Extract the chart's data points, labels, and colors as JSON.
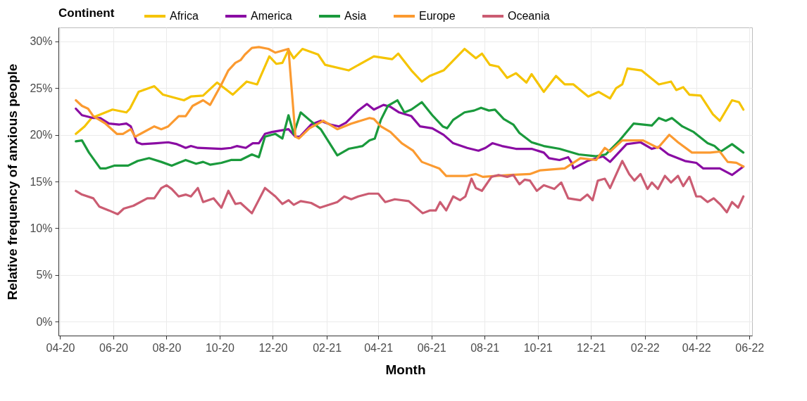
{
  "chart_data": {
    "type": "line",
    "xlabel": "Month",
    "ylabel": "Relative frequency of anxious people",
    "legend_title": "Continent",
    "legend": "top",
    "grid": true,
    "xlim": [
      "2020-03-30",
      "2022-06-04"
    ],
    "xticks": [
      {
        "value": "2020-04-01",
        "label": "04-20"
      },
      {
        "value": "2020-06-01",
        "label": "06-20"
      },
      {
        "value": "2020-08-01",
        "label": "08-20"
      },
      {
        "value": "2020-10-01",
        "label": "10-20"
      },
      {
        "value": "2020-12-01",
        "label": "12-20"
      },
      {
        "value": "2021-02-01",
        "label": "02-21"
      },
      {
        "value": "2021-04-01",
        "label": "04-21"
      },
      {
        "value": "2021-06-01",
        "label": "06-21"
      },
      {
        "value": "2021-08-01",
        "label": "08-21"
      },
      {
        "value": "2021-10-01",
        "label": "10-21"
      },
      {
        "value": "2021-12-01",
        "label": "12-21"
      },
      {
        "value": "2022-02-01",
        "label": "02-22"
      },
      {
        "value": "2022-04-01",
        "label": "04-22"
      },
      {
        "value": "2022-06-01",
        "label": "06-22"
      }
    ],
    "ylim": [
      -1.5,
      31.5
    ],
    "yticks": [
      {
        "value": 0,
        "label": "0%"
      },
      {
        "value": 5,
        "label": "5%"
      },
      {
        "value": 10,
        "label": "10%"
      },
      {
        "value": 15,
        "label": "15%"
      },
      {
        "value": 20,
        "label": "20%"
      },
      {
        "value": 25,
        "label": "25%"
      },
      {
        "value": 30,
        "label": "30%"
      }
    ],
    "series": [
      {
        "name": "Africa",
        "color": "#f5c400",
        "x": [
          "2020-04-19",
          "2020-04-29",
          "2020-05-07",
          "2020-05-31",
          "2020-06-16",
          "2020-06-20",
          "2020-06-30",
          "2020-07-18",
          "2020-07-28",
          "2020-08-21",
          "2020-08-29",
          "2020-09-12",
          "2020-09-28",
          "2020-10-16",
          "2020-11-01",
          "2020-11-13",
          "2020-11-27",
          "2020-12-05",
          "2020-12-12",
          "2020-12-19",
          "2020-12-25",
          "2021-01-04",
          "2021-01-22",
          "2021-01-30",
          "2021-02-26",
          "2021-03-27",
          "2021-04-17",
          "2021-04-24",
          "2021-05-09",
          "2021-05-21",
          "2021-05-30",
          "2021-06-15",
          "2021-07-09",
          "2021-07-22",
          "2021-07-29",
          "2021-08-07",
          "2021-08-17",
          "2021-08-27",
          "2021-09-06",
          "2021-09-18",
          "2021-09-24",
          "2021-10-08",
          "2021-10-22",
          "2021-11-01",
          "2021-11-11",
          "2021-11-28",
          "2021-12-10",
          "2021-12-23",
          "2021-12-30",
          "2022-01-06",
          "2022-01-12",
          "2022-01-28",
          "2022-02-17",
          "2022-03-03",
          "2022-03-09",
          "2022-03-17",
          "2022-03-24",
          "2022-04-06",
          "2022-04-20",
          "2022-04-28",
          "2022-05-12",
          "2022-05-20",
          "2022-05-25"
        ],
        "values": [
          20.1,
          20.9,
          21.8,
          22.7,
          22.4,
          22.8,
          24.6,
          25.2,
          24.3,
          23.7,
          24.1,
          24.2,
          25.6,
          24.3,
          25.7,
          25.4,
          28.4,
          27.6,
          27.7,
          29.1,
          28.2,
          29.2,
          28.6,
          27.5,
          26.9,
          28.4,
          28.1,
          28.7,
          26.9,
          25.7,
          26.3,
          26.9,
          29.2,
          28.2,
          28.7,
          27.5,
          27.3,
          26.1,
          26.6,
          25.6,
          26.5,
          24.6,
          26.3,
          25.4,
          25.4,
          24.1,
          24.6,
          23.9,
          25.0,
          25.4,
          27.1,
          26.9,
          25.4,
          25.7,
          24.8,
          25.1,
          24.3,
          24.2,
          22.2,
          21.5,
          23.7,
          23.5,
          22.7
        ]
      },
      {
        "name": "America",
        "color": "#8a0ca3",
        "x": [
          "2020-04-19",
          "2020-04-26",
          "2020-05-09",
          "2020-05-17",
          "2020-05-27",
          "2020-06-08",
          "2020-06-16",
          "2020-06-21",
          "2020-06-28",
          "2020-07-04",
          "2020-07-20",
          "2020-08-03",
          "2020-08-13",
          "2020-08-23",
          "2020-08-29",
          "2020-09-06",
          "2020-10-03",
          "2020-10-14",
          "2020-10-21",
          "2020-10-31",
          "2020-11-08",
          "2020-11-15",
          "2020-11-22",
          "2020-11-30",
          "2020-12-19",
          "2020-12-27",
          "2021-01-01",
          "2021-01-14",
          "2021-01-25",
          "2021-02-05",
          "2021-02-15",
          "2021-02-23",
          "2021-03-09",
          "2021-03-19",
          "2021-03-27",
          "2021-04-07",
          "2021-04-15",
          "2021-04-25",
          "2021-05-09",
          "2021-05-19",
          "2021-06-02",
          "2021-06-15",
          "2021-06-26",
          "2021-07-12",
          "2021-07-25",
          "2021-08-02",
          "2021-08-10",
          "2021-08-21",
          "2021-09-06",
          "2021-09-24",
          "2021-10-08",
          "2021-10-14",
          "2021-10-26",
          "2021-11-05",
          "2021-11-09",
          "2021-11-11",
          "2021-11-27",
          "2021-12-15",
          "2021-12-23",
          "2022-01-11",
          "2022-01-27",
          "2022-02-09",
          "2022-02-17",
          "2022-02-28",
          "2022-03-19",
          "2022-04-01",
          "2022-04-09",
          "2022-04-28",
          "2022-05-12",
          "2022-05-25"
        ],
        "values": [
          22.8,
          22.1,
          21.8,
          21.8,
          21.2,
          21.1,
          21.2,
          20.9,
          19.2,
          19.0,
          19.1,
          19.2,
          19.0,
          18.6,
          18.8,
          18.6,
          18.5,
          18.6,
          18.8,
          18.6,
          19.1,
          19.1,
          20.1,
          20.3,
          20.6,
          19.8,
          19.8,
          21.1,
          21.5,
          21.1,
          20.9,
          21.3,
          22.6,
          23.3,
          22.7,
          23.2,
          23.0,
          22.4,
          22.0,
          20.9,
          20.7,
          20.0,
          19.1,
          18.6,
          18.3,
          18.6,
          19.1,
          18.8,
          18.5,
          18.5,
          18.1,
          17.5,
          17.3,
          17.6,
          17.0,
          16.4,
          17.2,
          17.7,
          17.1,
          19.0,
          19.2,
          18.5,
          18.7,
          17.9,
          17.2,
          17.0,
          16.4,
          16.4,
          15.7,
          16.6
        ]
      },
      {
        "name": "Asia",
        "color": "#1a9a3c",
        "x": [
          "2020-04-19",
          "2020-04-26",
          "2020-05-04",
          "2020-05-17",
          "2020-05-23",
          "2020-06-02",
          "2020-06-18",
          "2020-06-29",
          "2020-07-12",
          "2020-07-26",
          "2020-08-07",
          "2020-08-23",
          "2020-09-04",
          "2020-09-12",
          "2020-09-20",
          "2020-10-03",
          "2020-10-14",
          "2020-10-25",
          "2020-11-07",
          "2020-11-15",
          "2020-11-22",
          "2020-12-04",
          "2020-12-12",
          "2020-12-19",
          "2020-12-25",
          "2021-01-02",
          "2021-01-12",
          "2021-01-25",
          "2021-02-13",
          "2021-02-26",
          "2021-03-14",
          "2021-03-22",
          "2021-03-28",
          "2021-04-04",
          "2021-04-12",
          "2021-04-23",
          "2021-05-01",
          "2021-05-09",
          "2021-05-21",
          "2021-06-02",
          "2021-06-14",
          "2021-06-19",
          "2021-06-26",
          "2021-07-09",
          "2021-07-20",
          "2021-07-28",
          "2021-08-06",
          "2021-08-13",
          "2021-08-23",
          "2021-09-03",
          "2021-09-10",
          "2021-09-24",
          "2021-10-08",
          "2021-10-26",
          "2021-11-17",
          "2021-12-07",
          "2021-12-18",
          "2022-01-03",
          "2022-01-19",
          "2022-02-09",
          "2022-02-17",
          "2022-02-25",
          "2022-03-04",
          "2022-03-16",
          "2022-03-29",
          "2022-04-14",
          "2022-04-22",
          "2022-04-29",
          "2022-05-12",
          "2022-05-25"
        ],
        "values": [
          19.3,
          19.4,
          18.1,
          16.4,
          16.4,
          16.7,
          16.7,
          17.2,
          17.5,
          17.1,
          16.7,
          17.3,
          16.9,
          17.1,
          16.8,
          17.0,
          17.3,
          17.3,
          17.9,
          17.6,
          19.8,
          20.1,
          19.6,
          22.1,
          20.1,
          22.4,
          21.6,
          20.6,
          17.8,
          18.5,
          18.8,
          19.4,
          19.6,
          21.6,
          23.1,
          23.7,
          22.4,
          22.7,
          23.5,
          22.1,
          20.9,
          20.7,
          21.6,
          22.4,
          22.6,
          22.9,
          22.6,
          22.7,
          21.7,
          21.1,
          20.2,
          19.2,
          18.8,
          18.5,
          17.9,
          17.7,
          17.9,
          19.4,
          21.2,
          21.0,
          21.8,
          21.5,
          21.8,
          20.9,
          20.3,
          19.1,
          18.8,
          18.2,
          19.0,
          18.1
        ]
      },
      {
        "name": "Europe",
        "color": "#fb9a30",
        "x": [
          "2020-04-19",
          "2020-04-26",
          "2020-05-03",
          "2020-05-09",
          "2020-05-23",
          "2020-06-05",
          "2020-06-12",
          "2020-06-21",
          "2020-06-26",
          "2020-07-04",
          "2020-07-18",
          "2020-07-26",
          "2020-08-03",
          "2020-08-15",
          "2020-08-23",
          "2020-08-31",
          "2020-09-12",
          "2020-09-20",
          "2020-10-03",
          "2020-10-11",
          "2020-10-19",
          "2020-10-25",
          "2020-10-30",
          "2020-11-07",
          "2020-11-15",
          "2020-11-26",
          "2020-12-04",
          "2020-12-19",
          "2020-12-27",
          "2020-12-31",
          "2021-01-12",
          "2021-01-28",
          "2021-02-13",
          "2021-03-01",
          "2021-03-22",
          "2021-03-27",
          "2021-04-04",
          "2021-04-15",
          "2021-04-28",
          "2021-05-11",
          "2021-05-21",
          "2021-06-10",
          "2021-06-18",
          "2021-07-12",
          "2021-07-22",
          "2021-07-30",
          "2021-08-31",
          "2021-09-22",
          "2021-10-04",
          "2021-11-01",
          "2021-11-19",
          "2021-12-07",
          "2021-12-17",
          "2021-12-23",
          "2022-01-06",
          "2022-01-30",
          "2022-02-16",
          "2022-03-01",
          "2022-03-11",
          "2022-03-27",
          "2022-04-17",
          "2022-04-28",
          "2022-05-07",
          "2022-05-17",
          "2022-05-25"
        ],
        "values": [
          23.7,
          23.1,
          22.8,
          22.0,
          21.2,
          20.1,
          20.1,
          20.6,
          19.8,
          20.2,
          20.9,
          20.6,
          20.9,
          22.0,
          22.0,
          23.1,
          23.7,
          23.2,
          25.4,
          26.9,
          27.7,
          28.0,
          28.6,
          29.3,
          29.4,
          29.2,
          28.8,
          29.2,
          19.8,
          19.6,
          20.7,
          21.5,
          20.6,
          21.2,
          21.8,
          21.7,
          20.9,
          20.3,
          19.1,
          18.3,
          17.1,
          16.4,
          15.6,
          15.6,
          15.8,
          15.5,
          15.7,
          15.8,
          16.2,
          16.4,
          17.5,
          17.3,
          18.6,
          18.2,
          19.4,
          19.4,
          18.6,
          20.0,
          19.2,
          18.1,
          18.1,
          18.2,
          17.1,
          17.0,
          16.6
        ]
      },
      {
        "name": "Oceania",
        "color": "#cb5c72",
        "x": [
          "2020-04-19",
          "2020-04-26",
          "2020-05-09",
          "2020-05-16",
          "2020-05-27",
          "2020-06-06",
          "2020-06-13",
          "2020-06-24",
          "2020-07-10",
          "2020-07-18",
          "2020-07-26",
          "2020-08-01",
          "2020-08-07",
          "2020-08-15",
          "2020-08-23",
          "2020-08-29",
          "2020-09-06",
          "2020-09-12",
          "2020-09-24",
          "2020-10-03",
          "2020-10-11",
          "2020-10-19",
          "2020-10-25",
          "2020-11-07",
          "2020-11-22",
          "2020-12-04",
          "2020-12-12",
          "2020-12-19",
          "2020-12-25",
          "2021-01-02",
          "2021-01-14",
          "2021-01-24",
          "2021-02-13",
          "2021-02-21",
          "2021-03-01",
          "2021-03-09",
          "2021-03-21",
          "2021-04-01",
          "2021-04-09",
          "2021-04-20",
          "2021-05-06",
          "2021-05-22",
          "2021-05-30",
          "2021-06-06",
          "2021-06-11",
          "2021-06-18",
          "2021-06-26",
          "2021-07-04",
          "2021-07-10",
          "2021-07-17",
          "2021-07-22",
          "2021-07-29",
          "2021-08-09",
          "2021-08-17",
          "2021-08-27",
          "2021-09-03",
          "2021-09-10",
          "2021-09-16",
          "2021-09-22",
          "2021-09-30",
          "2021-10-08",
          "2021-10-20",
          "2021-10-28",
          "2021-11-05",
          "2021-11-19",
          "2021-11-27",
          "2021-12-03",
          "2021-12-09",
          "2021-12-17",
          "2021-12-23",
          "2022-01-06",
          "2022-01-14",
          "2022-01-20",
          "2022-01-27",
          "2022-02-04",
          "2022-02-09",
          "2022-02-16",
          "2022-02-24",
          "2022-03-03",
          "2022-03-11",
          "2022-03-17",
          "2022-03-24",
          "2022-04-01",
          "2022-04-06",
          "2022-04-14",
          "2022-04-21",
          "2022-04-29",
          "2022-05-06",
          "2022-05-12",
          "2022-05-19",
          "2022-05-25"
        ],
        "values": [
          14.0,
          13.6,
          13.2,
          12.3,
          11.9,
          11.5,
          12.1,
          12.4,
          13.2,
          13.2,
          14.3,
          14.6,
          14.2,
          13.4,
          13.6,
          13.4,
          14.3,
          12.8,
          13.2,
          12.2,
          14.0,
          12.6,
          12.7,
          11.6,
          14.3,
          13.4,
          12.6,
          13.0,
          12.5,
          12.9,
          12.7,
          12.2,
          12.8,
          13.4,
          13.1,
          13.4,
          13.7,
          13.7,
          12.8,
          13.1,
          12.9,
          11.6,
          11.9,
          11.9,
          12.8,
          11.9,
          13.4,
          13.0,
          13.4,
          15.3,
          14.3,
          14.0,
          15.5,
          15.7,
          15.5,
          15.7,
          14.7,
          15.2,
          15.1,
          14.0,
          14.6,
          14.2,
          14.9,
          13.2,
          13.0,
          13.6,
          13.0,
          15.1,
          15.3,
          14.3,
          17.2,
          15.8,
          15.1,
          15.8,
          14.2,
          14.9,
          14.2,
          15.6,
          14.9,
          15.6,
          14.5,
          15.5,
          13.4,
          13.4,
          12.8,
          13.2,
          12.5,
          11.7,
          12.8,
          12.2,
          13.4
        ]
      }
    ]
  }
}
